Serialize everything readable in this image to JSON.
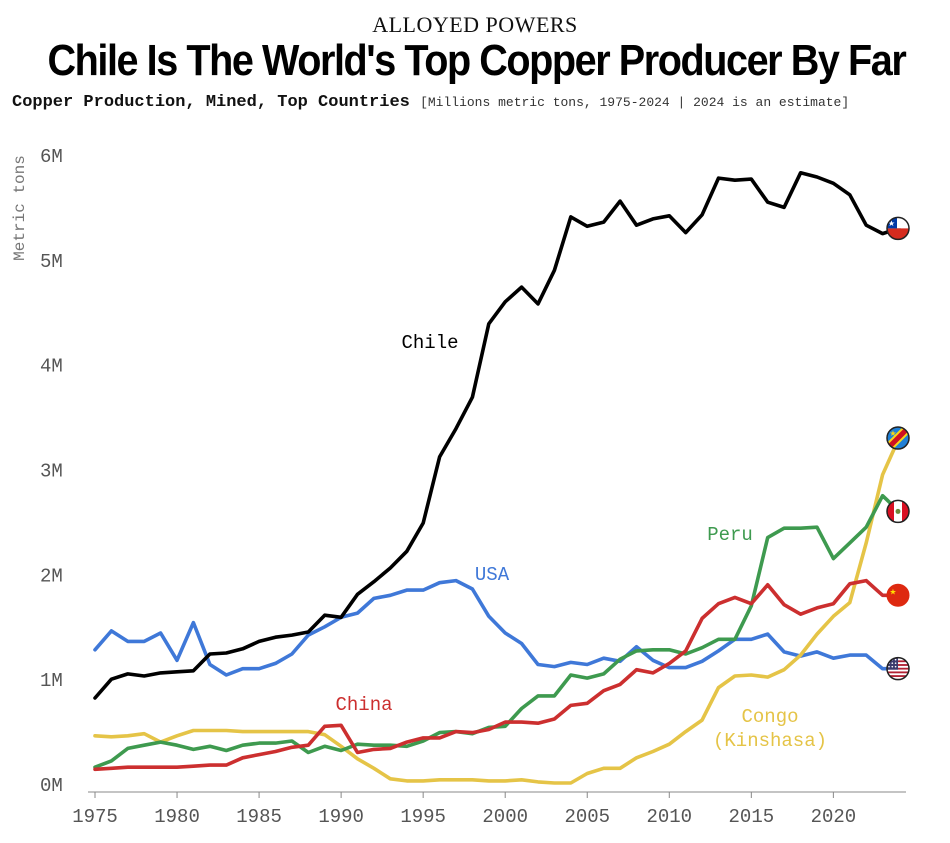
{
  "header": {
    "kicker": "ALLOYED POWERS",
    "title": "Chile Is The World's Top Copper Producer By Far",
    "subtitle_main": "Copper Production, Mined, Top Countries",
    "subtitle_note": "[Millions metric tons, 1975-2024 | 2024 is an estimate]"
  },
  "chart_data": {
    "type": "line",
    "ylabel": "Metric tons",
    "xlim": [
      1975,
      2024
    ],
    "ylim": [
      0,
      6
    ],
    "grid": false,
    "x_ticks": [
      1975,
      1980,
      1985,
      1990,
      1995,
      2000,
      2005,
      2010,
      2015,
      2020
    ],
    "x_tick_labels": [
      "1975",
      "1980",
      "1985",
      "1990",
      "1995",
      "2000",
      "2005",
      "2010",
      "2015",
      "2020"
    ],
    "y_ticks": [
      0,
      1,
      2,
      3,
      4,
      5,
      6
    ],
    "y_tick_labels": [
      "0M",
      "1M",
      "2M",
      "3M",
      "4M",
      "5M",
      "6M"
    ],
    "x": [
      1975,
      1976,
      1977,
      1978,
      1979,
      1980,
      1981,
      1982,
      1983,
      1984,
      1985,
      1986,
      1987,
      1988,
      1989,
      1990,
      1991,
      1992,
      1993,
      1994,
      1995,
      1996,
      1997,
      1998,
      1999,
      2000,
      2001,
      2002,
      2003,
      2004,
      2005,
      2006,
      2007,
      2008,
      2009,
      2010,
      2011,
      2012,
      2013,
      2014,
      2015,
      2016,
      2017,
      2018,
      2019,
      2020,
      2021,
      2022,
      2023,
      2024
    ],
    "series": [
      {
        "name": "Chile",
        "color": "#000000",
        "flag_icon": "chile-flag-icon",
        "values": [
          0.82,
          1.0,
          1.05,
          1.03,
          1.06,
          1.07,
          1.08,
          1.24,
          1.25,
          1.29,
          1.36,
          1.4,
          1.42,
          1.45,
          1.61,
          1.59,
          1.81,
          1.93,
          2.06,
          2.22,
          2.49,
          3.12,
          3.39,
          3.69,
          4.39,
          4.6,
          4.74,
          4.58,
          4.9,
          5.41,
          5.32,
          5.36,
          5.56,
          5.33,
          5.39,
          5.42,
          5.26,
          5.43,
          5.78,
          5.76,
          5.77,
          5.55,
          5.5,
          5.83,
          5.79,
          5.73,
          5.62,
          5.33,
          5.25,
          5.3
        ]
      },
      {
        "name": "Peru",
        "color": "#3e9a4f",
        "flag_icon": "peru-flag-icon",
        "values": [
          0.16,
          0.22,
          0.34,
          0.37,
          0.4,
          0.37,
          0.33,
          0.36,
          0.32,
          0.37,
          0.39,
          0.39,
          0.41,
          0.3,
          0.36,
          0.32,
          0.38,
          0.37,
          0.37,
          0.36,
          0.41,
          0.49,
          0.5,
          0.48,
          0.54,
          0.55,
          0.72,
          0.84,
          0.84,
          1.04,
          1.01,
          1.05,
          1.19,
          1.27,
          1.28,
          1.28,
          1.24,
          1.3,
          1.38,
          1.38,
          1.7,
          2.35,
          2.44,
          2.44,
          2.45,
          2.15,
          2.3,
          2.45,
          2.75,
          2.6
        ]
      },
      {
        "name": "USA",
        "color": "#3f78d8",
        "flag_icon": "usa-flag-icon",
        "values": [
          1.28,
          1.46,
          1.36,
          1.36,
          1.44,
          1.18,
          1.54,
          1.14,
          1.04,
          1.1,
          1.1,
          1.15,
          1.24,
          1.42,
          1.5,
          1.59,
          1.63,
          1.77,
          1.8,
          1.85,
          1.85,
          1.92,
          1.94,
          1.86,
          1.6,
          1.44,
          1.34,
          1.14,
          1.12,
          1.16,
          1.14,
          1.2,
          1.17,
          1.31,
          1.18,
          1.11,
          1.11,
          1.17,
          1.27,
          1.38,
          1.38,
          1.43,
          1.26,
          1.22,
          1.26,
          1.2,
          1.23,
          1.23,
          1.1,
          1.1
        ]
      },
      {
        "name": "China",
        "color": "#cc2f2f",
        "flag_icon": "china-flag-icon",
        "values": [
          0.14,
          0.15,
          0.16,
          0.16,
          0.16,
          0.16,
          0.17,
          0.18,
          0.18,
          0.25,
          0.28,
          0.31,
          0.35,
          0.37,
          0.55,
          0.56,
          0.3,
          0.33,
          0.34,
          0.4,
          0.44,
          0.44,
          0.5,
          0.49,
          0.52,
          0.59,
          0.59,
          0.58,
          0.62,
          0.75,
          0.77,
          0.89,
          0.95,
          1.09,
          1.06,
          1.15,
          1.27,
          1.58,
          1.72,
          1.78,
          1.72,
          1.9,
          1.71,
          1.62,
          1.68,
          1.72,
          1.91,
          1.94,
          1.8,
          1.8
        ]
      },
      {
        "name": "Congo (Kinshasa)",
        "color": "#e5c447",
        "flag_icon": "congo-flag-icon",
        "values": [
          0.46,
          0.45,
          0.46,
          0.48,
          0.4,
          0.46,
          0.51,
          0.51,
          0.51,
          0.5,
          0.5,
          0.5,
          0.5,
          0.5,
          0.47,
          0.36,
          0.24,
          0.15,
          0.05,
          0.03,
          0.03,
          0.04,
          0.04,
          0.04,
          0.03,
          0.03,
          0.04,
          0.02,
          0.01,
          0.01,
          0.1,
          0.15,
          0.15,
          0.25,
          0.31,
          0.38,
          0.5,
          0.61,
          0.92,
          1.03,
          1.04,
          1.02,
          1.09,
          1.23,
          1.43,
          1.6,
          1.73,
          2.3,
          2.95,
          3.3
        ]
      }
    ],
    "labels": [
      {
        "series": "Chile",
        "lines": [
          "Chile"
        ]
      },
      {
        "series": "USA",
        "lines": [
          "USA"
        ]
      },
      {
        "series": "Peru",
        "lines": [
          "Peru"
        ]
      },
      {
        "series": "China",
        "lines": [
          "China"
        ]
      },
      {
        "series": "Congo (Kinshasa)",
        "lines": [
          "Congo",
          "(Kinshasa)"
        ]
      }
    ]
  }
}
